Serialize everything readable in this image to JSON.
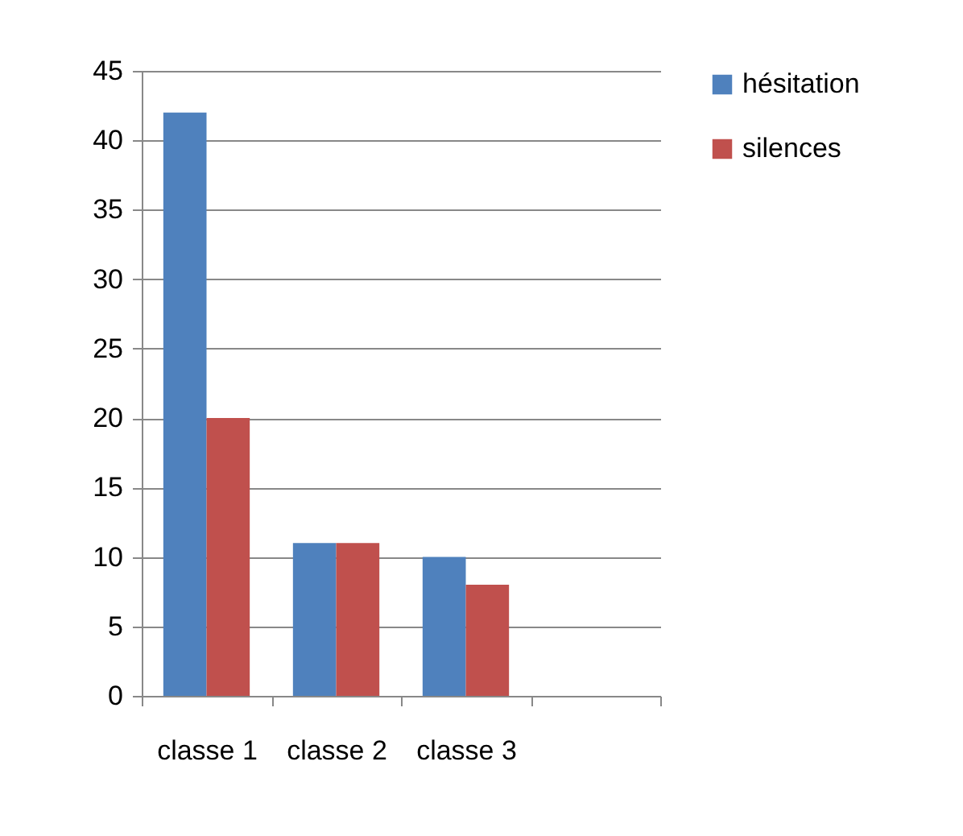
{
  "chart_data": {
    "type": "bar",
    "categories": [
      "classe 1",
      "classe 2",
      "classe 3",
      null
    ],
    "series": [
      {
        "name": "hésitation",
        "color": "#4f81bd",
        "values": [
          42,
          11,
          10,
          null
        ]
      },
      {
        "name": "silences",
        "color": "#c0504d",
        "values": [
          20,
          11,
          8,
          null
        ]
      }
    ],
    "ylim": [
      0,
      45
    ],
    "yticks": [
      0,
      5,
      10,
      15,
      20,
      25,
      30,
      35,
      40,
      45
    ],
    "grid": "y",
    "legend": "right"
  }
}
